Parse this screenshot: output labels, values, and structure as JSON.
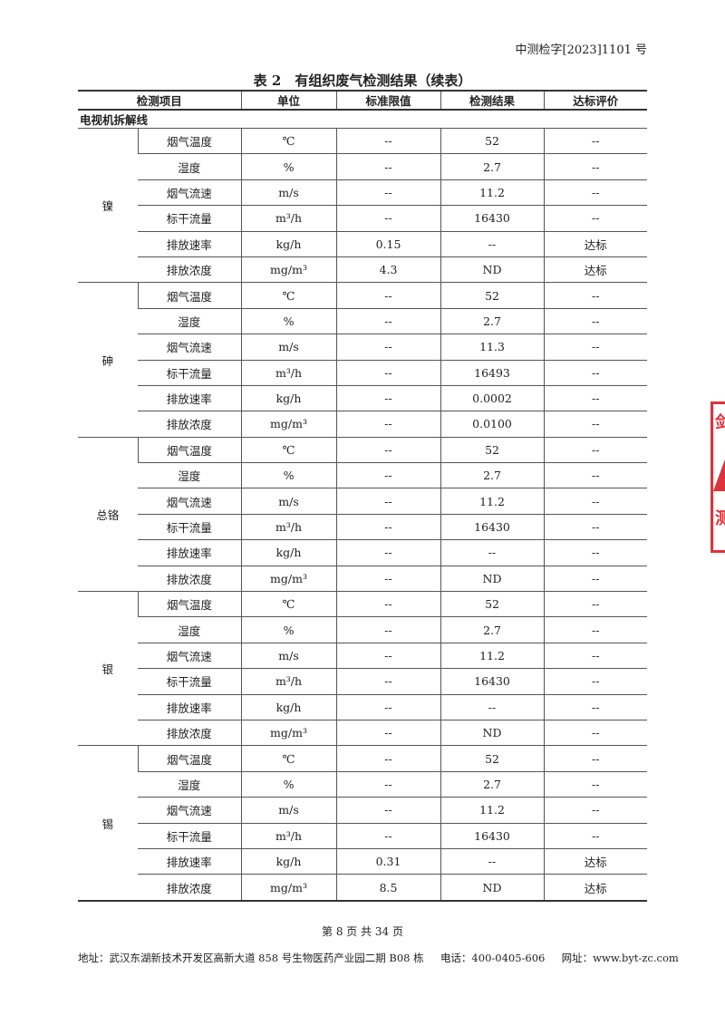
{
  "doc_number": "中测检字[2023]1101 号",
  "title": "表 2　有组织废气检测结果（续表）",
  "table": {
    "headers": [
      "检测项目",
      "单位",
      "标准限值",
      "检测结果",
      "达标评价"
    ],
    "section": "电视机拆解线",
    "groups": [
      {
        "name": "镍",
        "rows": [
          [
            "烟气温度",
            "℃",
            "--",
            "52",
            "--"
          ],
          [
            "湿度",
            "%",
            "--",
            "2.7",
            "--"
          ],
          [
            "烟气流速",
            "m/s",
            "--",
            "11.2",
            "--"
          ],
          [
            "标干流量",
            "m³/h",
            "--",
            "16430",
            "--"
          ],
          [
            "排放速率",
            "kg/h",
            "0.15",
            "--",
            "达标"
          ],
          [
            "排放浓度",
            "mg/m³",
            "4.3",
            "ND",
            "达标"
          ]
        ]
      },
      {
        "name": "砷",
        "rows": [
          [
            "烟气温度",
            "℃",
            "--",
            "52",
            "--"
          ],
          [
            "湿度",
            "%",
            "--",
            "2.7",
            "--"
          ],
          [
            "烟气流速",
            "m/s",
            "--",
            "11.3",
            "--"
          ],
          [
            "标干流量",
            "m³/h",
            "--",
            "16493",
            "--"
          ],
          [
            "排放速率",
            "kg/h",
            "--",
            "0.0002",
            "--"
          ],
          [
            "排放浓度",
            "mg/m³",
            "--",
            "0.0100",
            "--"
          ]
        ]
      },
      {
        "name": "总铬",
        "rows": [
          [
            "烟气温度",
            "℃",
            "--",
            "52",
            "--"
          ],
          [
            "湿度",
            "%",
            "--",
            "2.7",
            "--"
          ],
          [
            "烟气流速",
            "m/s",
            "--",
            "11.2",
            "--"
          ],
          [
            "标干流量",
            "m³/h",
            "--",
            "16430",
            "--"
          ],
          [
            "排放速率",
            "kg/h",
            "--",
            "--",
            "--"
          ],
          [
            "排放浓度",
            "mg/m³",
            "--",
            "ND",
            "--"
          ]
        ]
      },
      {
        "name": "银",
        "rows": [
          [
            "烟气温度",
            "℃",
            "--",
            "52",
            "--"
          ],
          [
            "湿度",
            "%",
            "--",
            "2.7",
            "--"
          ],
          [
            "烟气流速",
            "m/s",
            "--",
            "11.2",
            "--"
          ],
          [
            "标干流量",
            "m³/h",
            "--",
            "16430",
            "--"
          ],
          [
            "排放速率",
            "kg/h",
            "--",
            "--",
            "--"
          ],
          [
            "排放浓度",
            "mg/m³",
            "--",
            "ND",
            "--"
          ]
        ]
      },
      {
        "name": "锡",
        "rows": [
          [
            "烟气温度",
            "℃",
            "--",
            "52",
            "--"
          ],
          [
            "湿度",
            "%",
            "--",
            "2.7",
            "--"
          ],
          [
            "烟气流速",
            "m/s",
            "--",
            "11.2",
            "--"
          ],
          [
            "标干流量",
            "m³/h",
            "--",
            "16430",
            "--"
          ],
          [
            "排放速率",
            "kg/h",
            "0.31",
            "--",
            "达标"
          ],
          [
            "排放浓度",
            "mg/m³",
            "8.5",
            "ND",
            "达标"
          ]
        ]
      }
    ]
  },
  "footer": {
    "page": "第 8 页 共 34 页",
    "address": "地址：武汉东湖新技术开发区高新大道 858 号生物医药产业园二期 B08 栋",
    "phone": "电话：400-0405-606",
    "website": "网址：www.byt-zc.com"
  },
  "stamp": {
    "text": "检测",
    "color": "#e0323a"
  }
}
